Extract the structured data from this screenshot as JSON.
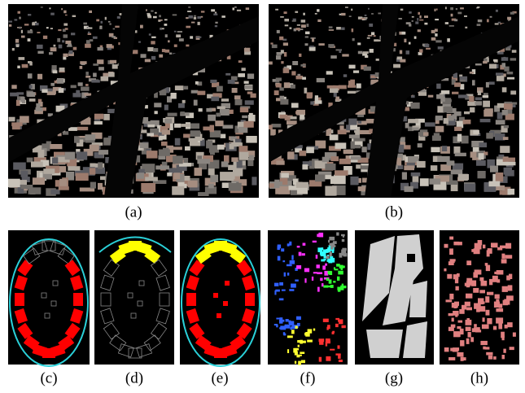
{
  "figure": {
    "captions": [
      "(a)",
      "(b)",
      "(c)",
      "(d)",
      "(e)",
      "(f)",
      "(g)",
      "(h)"
    ]
  }
}
